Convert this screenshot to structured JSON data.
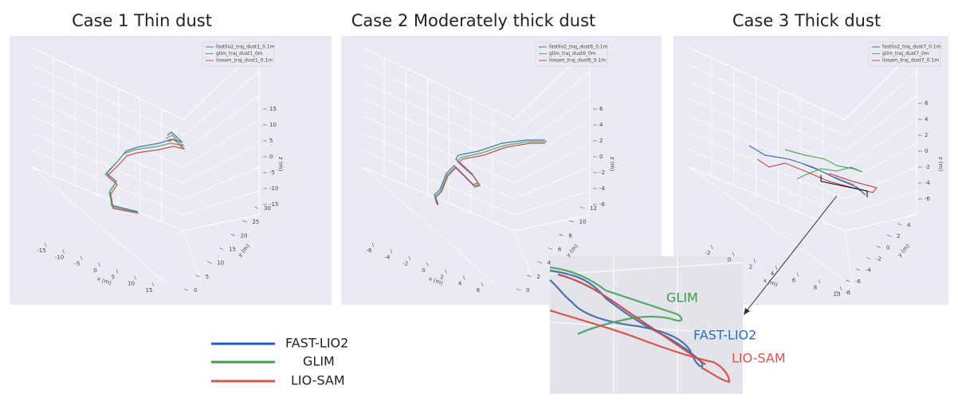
{
  "panels": [
    {
      "title": "Case 1 Thin dust",
      "legend": [
        "fastlio2_traj_dust1_0.1m",
        "glim_traj_dust1_0m",
        "liosam_traj_dust1_0.1m"
      ],
      "x_label": "x (m)",
      "y_label": "y (m)",
      "z_label": "z (m)",
      "x_ticks": [
        "-15",
        "-10",
        "-5",
        "0",
        "5",
        "10",
        "15"
      ],
      "y_ticks": [
        "30",
        "25",
        "20",
        "15",
        "10",
        "5",
        "0"
      ],
      "z_ticks": [
        "15",
        "10",
        "5",
        "0",
        "-5",
        "-10",
        "-15"
      ]
    },
    {
      "title": "Case 2 Moderately thick dust",
      "legend": [
        "fastlio2_traj_dust6_0.1m",
        "glim_traj_dust6_0m",
        "liosam_traj_dust6_0.1m"
      ],
      "x_label": "x (m)",
      "y_label": "y (m)",
      "z_label": "z (m)",
      "x_ticks": [
        "-6",
        "-4",
        "-2",
        "0",
        "2",
        "4",
        "6"
      ],
      "y_ticks": [
        "12",
        "10",
        "8",
        "6",
        "4",
        "2",
        "0"
      ],
      "z_ticks": [
        "6",
        "4",
        "2",
        "0",
        "-2",
        "-4",
        "-6"
      ]
    },
    {
      "title": "Case 3 Thick dust",
      "legend": [
        "fastlio2_traj_dust7_0.1m",
        "glim_traj_dust7_0m",
        "liosam_traj_dust7_0.1m"
      ],
      "x_label": "x (m)",
      "y_label": "y (m)",
      "z_label": "z (m)",
      "x_ticks": [
        "-2",
        "0",
        "2",
        "4",
        "6",
        "8",
        "10"
      ],
      "y_ticks": [
        "4",
        "2",
        "0",
        "-2",
        "-4",
        "-6",
        "-8"
      ],
      "z_ticks": [
        "6",
        "4",
        "2",
        "0",
        "-2",
        "-4",
        "-6"
      ]
    }
  ],
  "legend": [
    "FAST-LIO2",
    "GLIM",
    "LIO-SAM"
  ],
  "zoom": {
    "labels": [
      "GLIM",
      "FAST-LIO2",
      "LIO-SAM"
    ]
  }
}
